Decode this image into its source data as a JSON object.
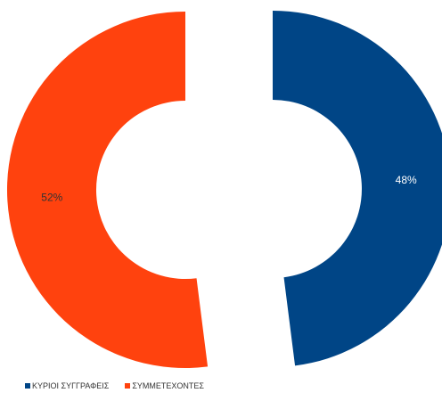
{
  "chart_data": {
    "type": "pie",
    "style": "exploded-donut",
    "series": [
      {
        "name": "ΚΥΡΙΟΙ ΣΥΓΓΡΑΦΕΙΣ",
        "value": 48,
        "label": "48%",
        "color": "#004586"
      },
      {
        "name": "ΣΥΜΜΕΤΕΧΟΝΤΕΣ",
        "value": 52,
        "label": "52%",
        "color": "#ff420e"
      }
    ],
    "legend_position": "bottom-left"
  }
}
